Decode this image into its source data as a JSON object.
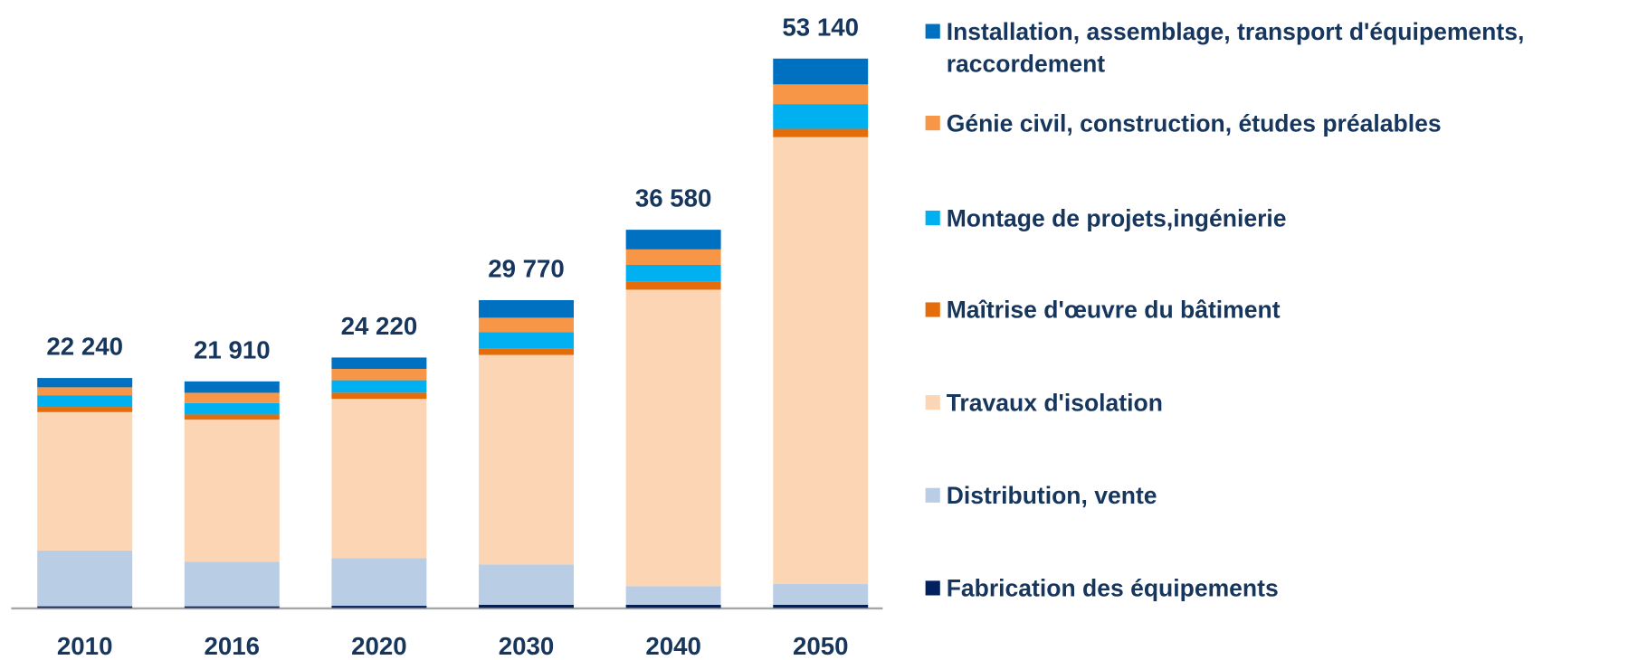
{
  "chart_data": {
    "type": "stacked_bar",
    "categories": [
      "2010",
      "2016",
      "2020",
      "2030",
      "2040",
      "2050"
    ],
    "series": [
      {
        "name": "Installation, assemblage, transport d'équipements, raccordement",
        "color": "#0070c0",
        "values": [
          900,
          1100,
          1100,
          1700,
          1900,
          2500
        ]
      },
      {
        "name": "Génie civil, construction, études préalables",
        "color": "#f79646",
        "values": [
          800,
          1000,
          1100,
          1400,
          1500,
          1900
        ]
      },
      {
        "name": "Montage de projets,ingénierie",
        "color": "#00b0f0",
        "values": [
          1100,
          1100,
          1200,
          1600,
          1600,
          2400
        ]
      },
      {
        "name": "Maîtrise d'œuvre du bâtiment",
        "color": "#e46c0a",
        "values": [
          500,
          500,
          600,
          600,
          800,
          800
        ]
      },
      {
        "name": "Travaux d'isolation",
        "color": "#fcd5b5",
        "values": [
          13390,
          13760,
          15420,
          20270,
          28680,
          43240
        ]
      },
      {
        "name": "Distribution, vente",
        "color": "#b9cde5",
        "values": [
          5400,
          4300,
          4600,
          3900,
          1800,
          2000
        ]
      },
      {
        "name": "Fabrication des équipements",
        "color": "#002060",
        "values": [
          150,
          150,
          200,
          300,
          300,
          300
        ]
      }
    ],
    "totals": [
      22240,
      21910,
      24220,
      29770,
      36580,
      53140
    ],
    "total_labels": [
      "22 240",
      "21 910",
      "24 220",
      "29 770",
      "36 580",
      "53 140"
    ],
    "ylim": [
      0,
      58000
    ]
  }
}
